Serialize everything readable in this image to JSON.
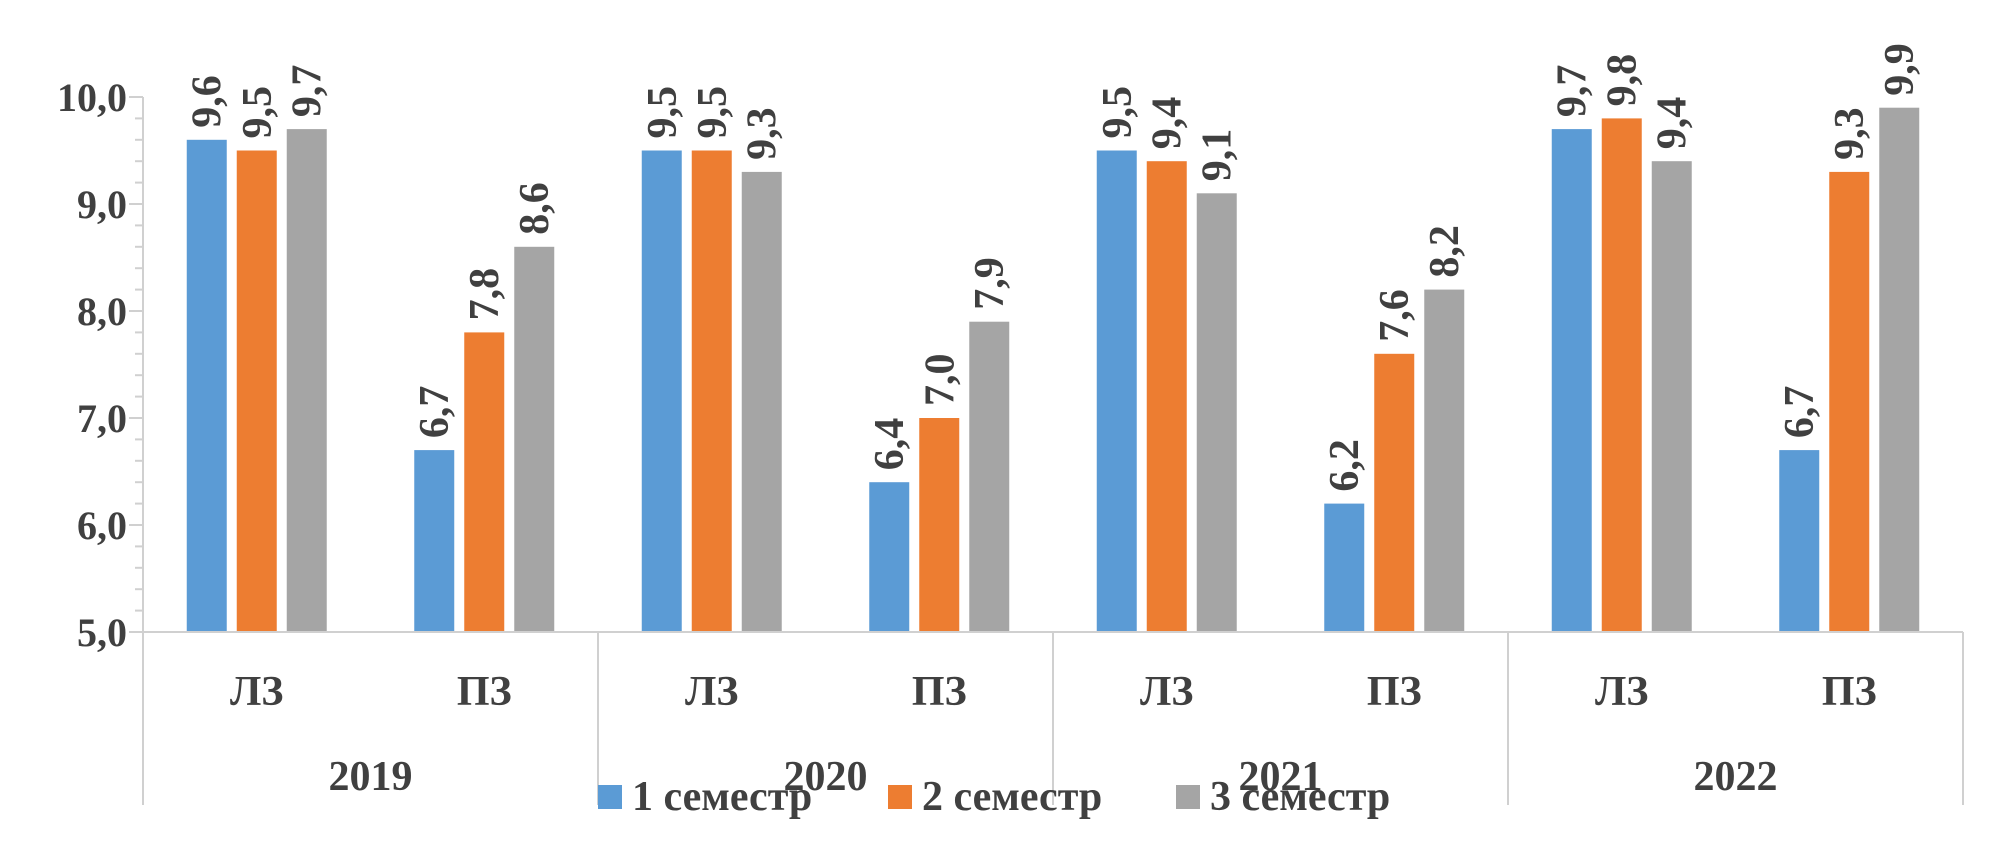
{
  "chart_data": {
    "type": "bar",
    "title": "",
    "xlabel": "",
    "ylabel": "",
    "ylim": [
      5,
      10
    ],
    "y_ticks": [
      "5,0",
      "6,0",
      "7,0",
      "8,0",
      "9,0",
      "10,0"
    ],
    "grid": false,
    "legend_position": "bottom",
    "groups": [
      "2019",
      "2020",
      "2021",
      "2022"
    ],
    "categories": [
      "ЛЗ",
      "ПЗ",
      "ЛЗ",
      "ПЗ",
      "ЛЗ",
      "ПЗ",
      "ЛЗ",
      "ПЗ"
    ],
    "series": [
      {
        "name": "1 семестр",
        "color": "#5b9bd5",
        "values": [
          9.6,
          6.7,
          9.5,
          6.4,
          9.5,
          6.2,
          9.7,
          6.7
        ],
        "labels": [
          "9,6",
          "6,7",
          "9,5",
          "6,4",
          "9,5",
          "6,2",
          "9,7",
          "6,7"
        ]
      },
      {
        "name": "2 семестр",
        "color": "#ed7d31",
        "values": [
          9.5,
          7.8,
          9.5,
          7.0,
          9.4,
          7.6,
          9.8,
          9.3
        ],
        "labels": [
          "9,5",
          "7,8",
          "9,5",
          "7,0",
          "9,4",
          "7,6",
          "9,8",
          "9,3"
        ]
      },
      {
        "name": "3 семестр",
        "color": "#a5a5a5",
        "values": [
          9.7,
          8.6,
          9.3,
          7.9,
          9.1,
          8.2,
          9.4,
          9.9
        ],
        "labels": [
          "9,7",
          "8,6",
          "9,3",
          "7,9",
          "9,1",
          "8,2",
          "9,4",
          "9,9"
        ]
      }
    ]
  }
}
